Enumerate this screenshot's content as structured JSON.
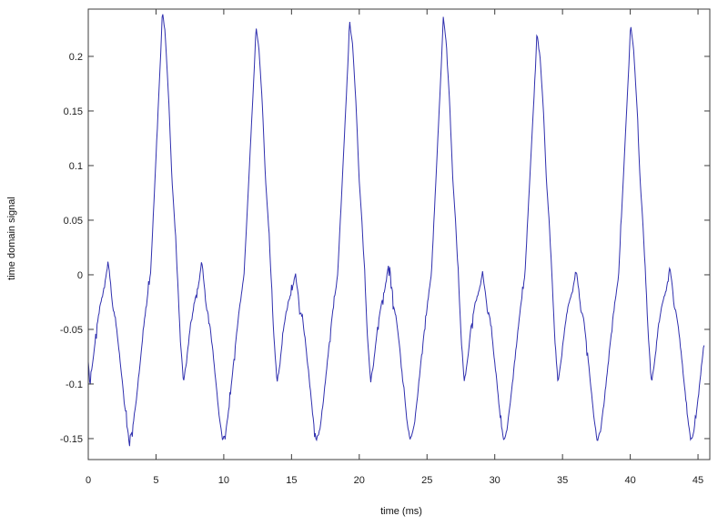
{
  "chart_data": {
    "type": "line",
    "title": "",
    "xlabel": "time (ms)",
    "ylabel": "time domain signal",
    "xlim": [
      0,
      45.87
    ],
    "ylim": [
      -0.1692,
      0.2433
    ],
    "xticks": [
      0,
      5,
      10,
      15,
      20,
      25,
      30,
      35,
      40,
      45
    ],
    "xtick_labels": [
      "0",
      "5",
      "10",
      "15",
      "20",
      "25",
      "30",
      "35",
      "40",
      "45"
    ],
    "yticks": [
      -0.15,
      -0.1,
      -0.05,
      0,
      0.05,
      0.1,
      0.15,
      0.2
    ],
    "ytick_labels": [
      "-0.15",
      "-0.1",
      "-0.05",
      "0",
      "0.05",
      "0.1",
      "0.15",
      "0.2"
    ],
    "grid": false,
    "legend": "none",
    "box": true,
    "line_color": "#2f2fae",
    "axis_color": "#3c3c3c",
    "background": "#ffffff",
    "series": [
      {
        "name": "time domain signal",
        "description": "Periodic speech-like waveform (~6.91 ms period): sharp positive peak ~0.235, descent to local dip ~-0.10, small secondary bump ~0.01, deep trough ~-0.155, then steep rise to the next peak; small measurement noise jitter throughout.",
        "t_start_ms": 0,
        "t_end_ms": 45.45,
        "sample_step_ms": 0.05,
        "period_ms": 6.91,
        "first_peak_ms": 5.47,
        "observed_peaks": {
          "t_ms": [
            5.5,
            12.4,
            19.3,
            26.2,
            33.2,
            40.0
          ],
          "value": [
            0.242,
            0.228,
            0.233,
            0.236,
            0.222,
            0.23
          ]
        },
        "observed_troughs": {
          "t_ms": [
            2.9,
            9.9,
            16.9,
            23.8,
            30.7,
            37.6,
            44.6
          ],
          "value": [
            -0.15,
            -0.158,
            -0.155,
            -0.148,
            -0.158,
            -0.16,
            -0.157
          ]
        },
        "period_shape_keyframes": [
          [
            0.0,
            0.235
          ],
          [
            0.22,
            0.212
          ],
          [
            0.48,
            0.155
          ],
          [
            0.7,
            0.088
          ],
          [
            0.9,
            0.05
          ],
          [
            1.1,
            0.002
          ],
          [
            1.32,
            -0.058
          ],
          [
            1.55,
            -0.098
          ],
          [
            1.78,
            -0.08
          ],
          [
            2.05,
            -0.048
          ],
          [
            2.35,
            -0.026
          ],
          [
            2.65,
            -0.012
          ],
          [
            2.9,
            0.008
          ],
          [
            3.08,
            -0.01
          ],
          [
            3.22,
            -0.03
          ],
          [
            3.42,
            -0.038
          ],
          [
            3.65,
            -0.062
          ],
          [
            3.95,
            -0.098
          ],
          [
            4.2,
            -0.13
          ],
          [
            4.45,
            -0.152
          ],
          [
            4.7,
            -0.142
          ],
          [
            4.95,
            -0.118
          ],
          [
            5.25,
            -0.082
          ],
          [
            5.6,
            -0.04
          ],
          [
            6.03,
            0.0
          ],
          [
            6.35,
            0.082
          ],
          [
            6.6,
            0.148
          ],
          [
            6.8,
            0.2
          ]
        ],
        "peak_height_adjust": [
          0.007,
          -0.007,
          -0.002,
          0.001,
          -0.013,
          -0.005,
          0.0
        ],
        "peak_adjust_sigma_ms": 0.45,
        "bump_center_tau_ms": 2.9,
        "bump_height_adjust": [
          0.004,
          0.004,
          -0.006,
          0.004,
          -0.005,
          -0.004,
          -0.001
        ],
        "bump_adjust_sigma_ms": 0.28,
        "noise": {
          "seed": 7,
          "base_amp": 0.0015,
          "burst_prob": 0.08,
          "burst_amp": 0.006,
          "spike_prob": 0.03,
          "spike_amp": 0.011,
          "quiet_above_value": 0.05,
          "quiet_scale": 0.35
        }
      }
    ]
  }
}
